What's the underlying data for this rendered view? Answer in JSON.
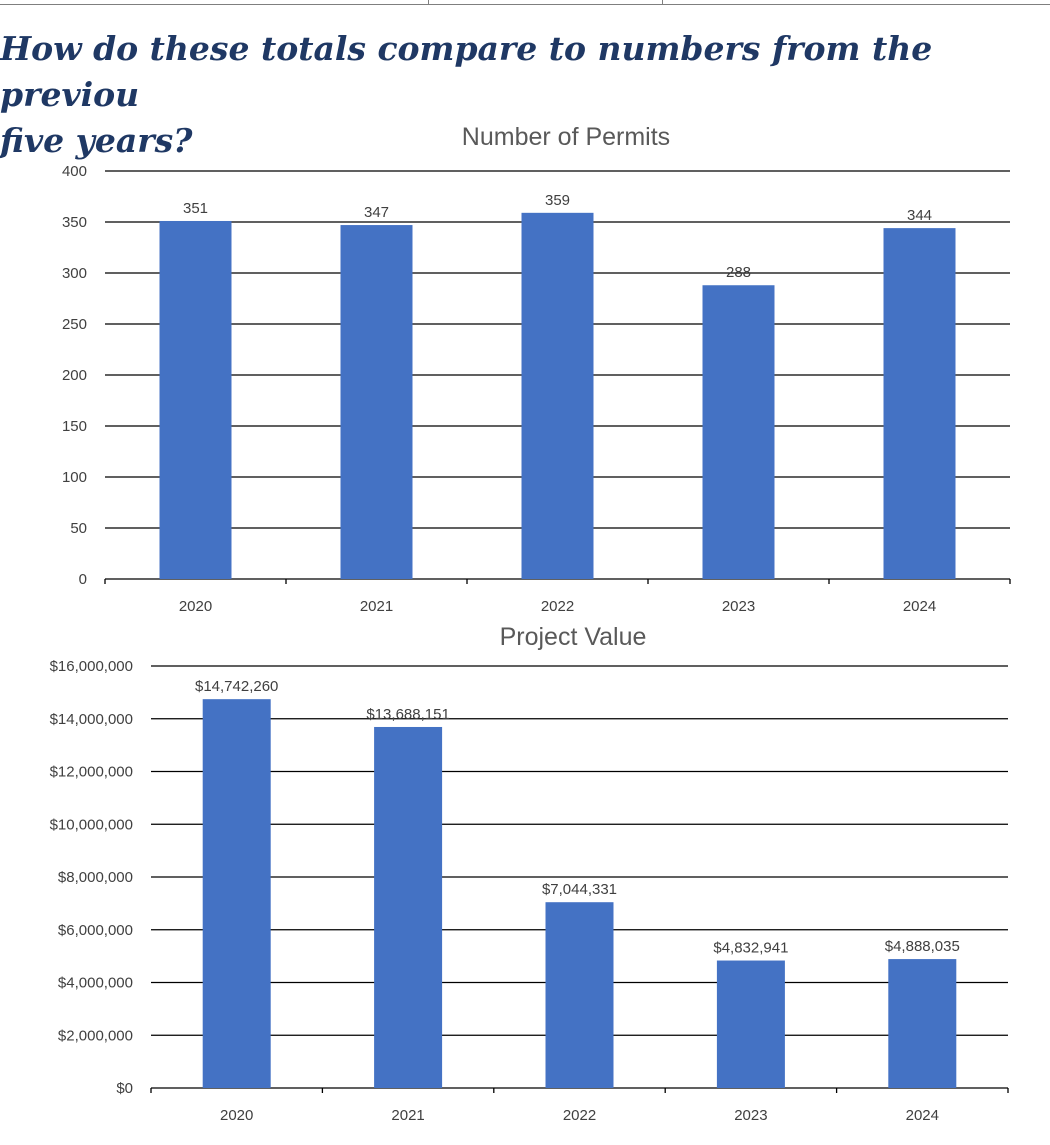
{
  "heading": {
    "line1": "How do these totals compare to numbers from the previou",
    "line2": "five years?"
  },
  "colors": {
    "bar": "#4472c4",
    "heading": "#1f3864",
    "grid": "#000000",
    "text": "#404040"
  },
  "chart_data": [
    {
      "type": "bar",
      "title": "Number of Permits",
      "categories": [
        "2020",
        "2021",
        "2022",
        "2023",
        "2024"
      ],
      "values": [
        351,
        347,
        359,
        288,
        344
      ],
      "value_labels": [
        "351",
        "347",
        "359",
        "288",
        "344"
      ],
      "ylim": [
        0,
        400
      ],
      "yticks": [
        "0",
        "50",
        "100",
        "150",
        "200",
        "250",
        "300",
        "350",
        "400"
      ],
      "grid": true,
      "xlabel": "",
      "ylabel": ""
    },
    {
      "type": "bar",
      "title": "Project Value",
      "categories": [
        "2020",
        "2021",
        "2022",
        "2023",
        "2024"
      ],
      "values": [
        14742260,
        13688151,
        7044331,
        4832941,
        4888035
      ],
      "value_labels": [
        "$14,742,260",
        "$13,688,151",
        "$7,044,331",
        "$4,832,941",
        "$4,888,035"
      ],
      "ylim": [
        0,
        16000000
      ],
      "yticks": [
        "$0",
        "$2,000,000",
        "$4,000,000",
        "$6,000,000",
        "$8,000,000",
        "$10,000,000",
        "$12,000,000",
        "$14,000,000",
        "$16,000,000"
      ],
      "grid": true,
      "xlabel": "",
      "ylabel": ""
    }
  ]
}
